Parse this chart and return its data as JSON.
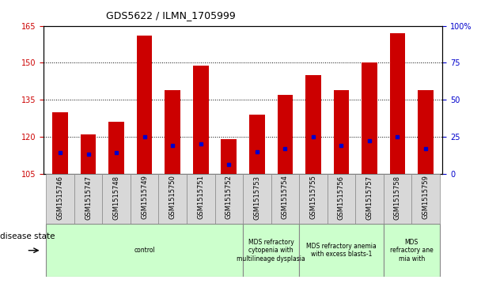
{
  "title": "GDS5622 / ILMN_1705999",
  "samples": [
    "GSM1515746",
    "GSM1515747",
    "GSM1515748",
    "GSM1515749",
    "GSM1515750",
    "GSM1515751",
    "GSM1515752",
    "GSM1515753",
    "GSM1515754",
    "GSM1515755",
    "GSM1515756",
    "GSM1515757",
    "GSM1515758",
    "GSM1515759"
  ],
  "count_values": [
    130,
    121,
    126,
    161,
    139,
    149,
    119,
    129,
    137,
    145,
    139,
    150,
    162,
    139
  ],
  "percentile_values": [
    14,
    13,
    14,
    25,
    19,
    20,
    6,
    15,
    17,
    25,
    19,
    22,
    25,
    17
  ],
  "ymin": 105,
  "ymax": 165,
  "yticks": [
    105,
    120,
    135,
    150,
    165
  ],
  "y2ticks": [
    0,
    25,
    50,
    75,
    100
  ],
  "bar_color": "#cc0000",
  "dot_color": "#0000cc",
  "bar_bottom": 105,
  "disease_groups": [
    {
      "label": "control",
      "start": 0,
      "end": 7
    },
    {
      "label": "MDS refractory\ncytopenia with\nmultilineage dysplasia",
      "start": 7,
      "end": 9
    },
    {
      "label": "MDS refractory anemia\nwith excess blasts-1",
      "start": 9,
      "end": 12
    },
    {
      "label": "MDS\nrefractory ane\nmia with",
      "start": 12,
      "end": 14
    }
  ],
  "disease_bg_color": "#ccffcc",
  "label_bg_color": "#d8d8d8",
  "legend_count_color": "#cc0000",
  "legend_pct_color": "#0000cc",
  "tick_label_color_left": "#cc0000",
  "tick_label_color_right": "#0000cc"
}
